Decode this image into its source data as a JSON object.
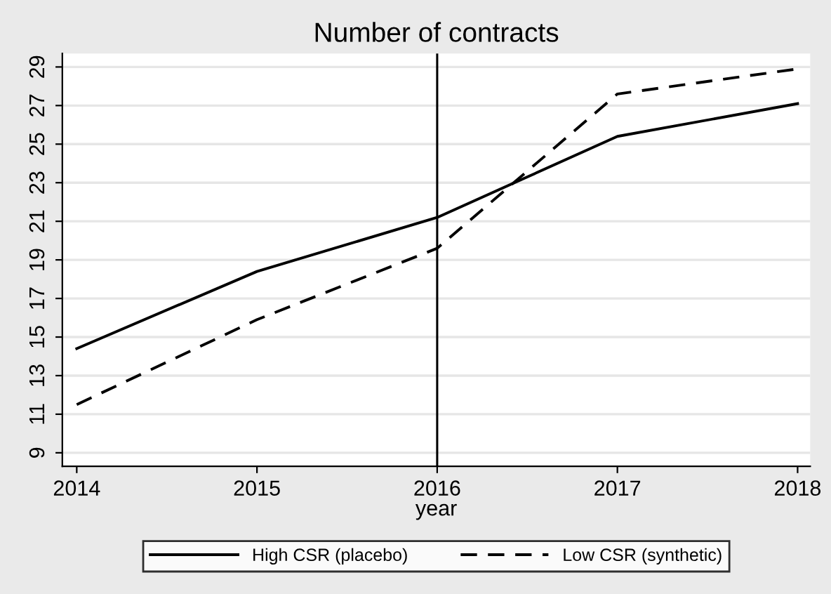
{
  "chart_data": {
    "type": "line",
    "title": "Number of contracts",
    "xlabel": "year",
    "x": [
      2014,
      2015,
      2016,
      2017,
      2018
    ],
    "series": [
      {
        "name": "High CSR (placebo)",
        "color": "#000000",
        "line_style": "solid",
        "values": [
          14.4,
          18.4,
          21.2,
          25.4,
          27.1
        ]
      },
      {
        "name": "Low CSR (synthetic)",
        "color": "#000000",
        "line_style": "dashed",
        "values": [
          11.5,
          15.9,
          19.6,
          27.6,
          28.9
        ]
      }
    ],
    "xlim": [
      2013.92,
      2018.07
    ],
    "xticks": [
      2014,
      2015,
      2016,
      2017,
      2018
    ],
    "ylim": [
      8.3,
      29.7
    ],
    "yticks": [
      9,
      11,
      13,
      15,
      17,
      19,
      21,
      23,
      25,
      27,
      29
    ],
    "ref_lines": [
      {
        "axis": "x",
        "value": 2016,
        "color": "#000000"
      }
    ],
    "grid": "y",
    "legend": "bottom",
    "marker": "none"
  }
}
